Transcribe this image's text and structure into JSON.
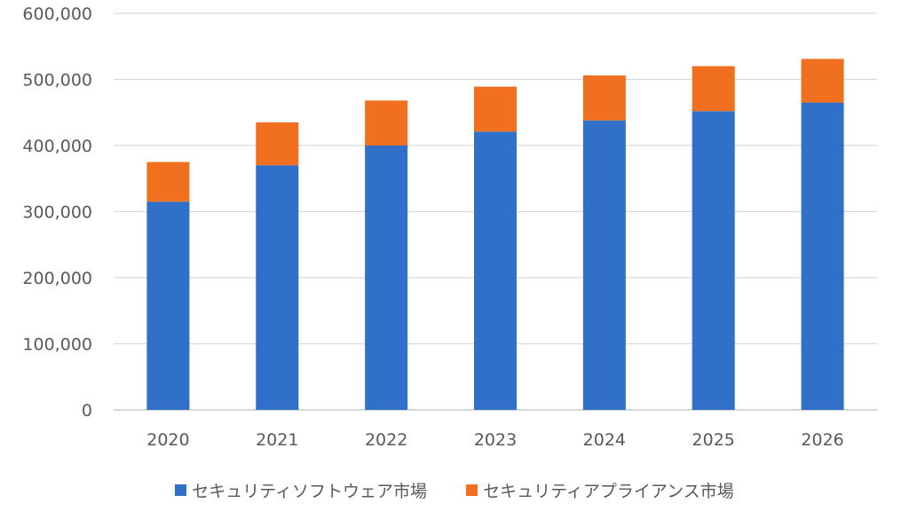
{
  "chart_data": {
    "type": "bar",
    "stacked": true,
    "categories": [
      "2020",
      "2021",
      "2022",
      "2023",
      "2024",
      "2025",
      "2026"
    ],
    "series": [
      {
        "name": "セキュリティソフトウェア市場",
        "color": "#3070C8",
        "values": [
          315000,
          370000,
          400000,
          421000,
          438000,
          452000,
          465000
        ]
      },
      {
        "name": "セキュリティアプライアンス市場",
        "color": "#F07020",
        "values": [
          60000,
          65000,
          68000,
          68000,
          68000,
          68000,
          66000
        ]
      }
    ],
    "ylim": [
      0,
      600000
    ],
    "y_ticks": [
      "0",
      "100,000",
      "200,000",
      "300,000",
      "400,000",
      "500,000",
      "600,000"
    ],
    "grid": true,
    "legend": "bottom"
  }
}
